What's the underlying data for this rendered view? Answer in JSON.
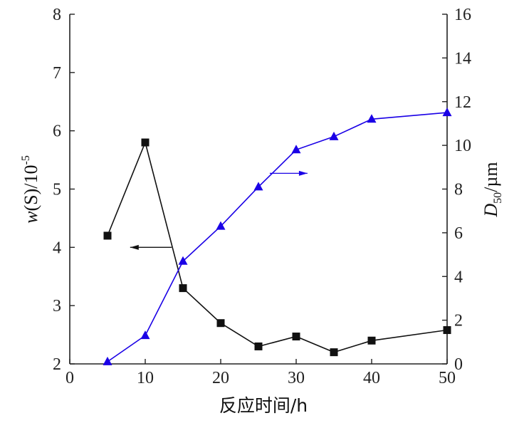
{
  "chart_data": {
    "type": "line",
    "title": "",
    "xlabel": "反应时间/h",
    "ylabel_left_parts": {
      "main": "w",
      "mid": "(S)/10",
      "sup": "-5"
    },
    "ylabel_right_parts": {
      "main": "D",
      "sub": "50",
      "tail": "/µm"
    },
    "xlim": [
      0,
      50
    ],
    "ylim_left": [
      2,
      8
    ],
    "ylim_right": [
      0,
      16
    ],
    "x_ticks": [
      "0",
      "10",
      "20",
      "30",
      "40",
      "50"
    ],
    "y_left_ticks": [
      "2",
      "3",
      "4",
      "5",
      "6",
      "7",
      "8"
    ],
    "y_right_ticks": [
      "0",
      "2",
      "4",
      "6",
      "8",
      "10",
      "12",
      "14",
      "16"
    ],
    "grid": false,
    "series": [
      {
        "axis": "left",
        "marker": "square",
        "color": "#111111",
        "x": [
          5,
          10,
          15,
          20,
          25,
          30,
          35,
          40,
          50
        ],
        "y": [
          4.2,
          5.8,
          3.3,
          2.7,
          2.3,
          2.47,
          2.2,
          2.4,
          2.58
        ]
      },
      {
        "axis": "right",
        "marker": "triangle",
        "color": "#1a00e6",
        "x": [
          5,
          10,
          15,
          20,
          25,
          30,
          35,
          40,
          50
        ],
        "y": [
          0.1,
          1.3,
          4.7,
          6.3,
          8.1,
          9.8,
          10.4,
          11.2,
          11.5
        ]
      }
    ],
    "annotations": [
      {
        "type": "arrow",
        "direction": "left",
        "color": "#111111",
        "x": [
          13.5,
          8
        ],
        "y_left": 4.0
      },
      {
        "type": "arrow",
        "direction": "right",
        "color": "#1a00e6",
        "x": [
          26.5,
          31.5
        ],
        "y_left": 5.27
      }
    ]
  }
}
